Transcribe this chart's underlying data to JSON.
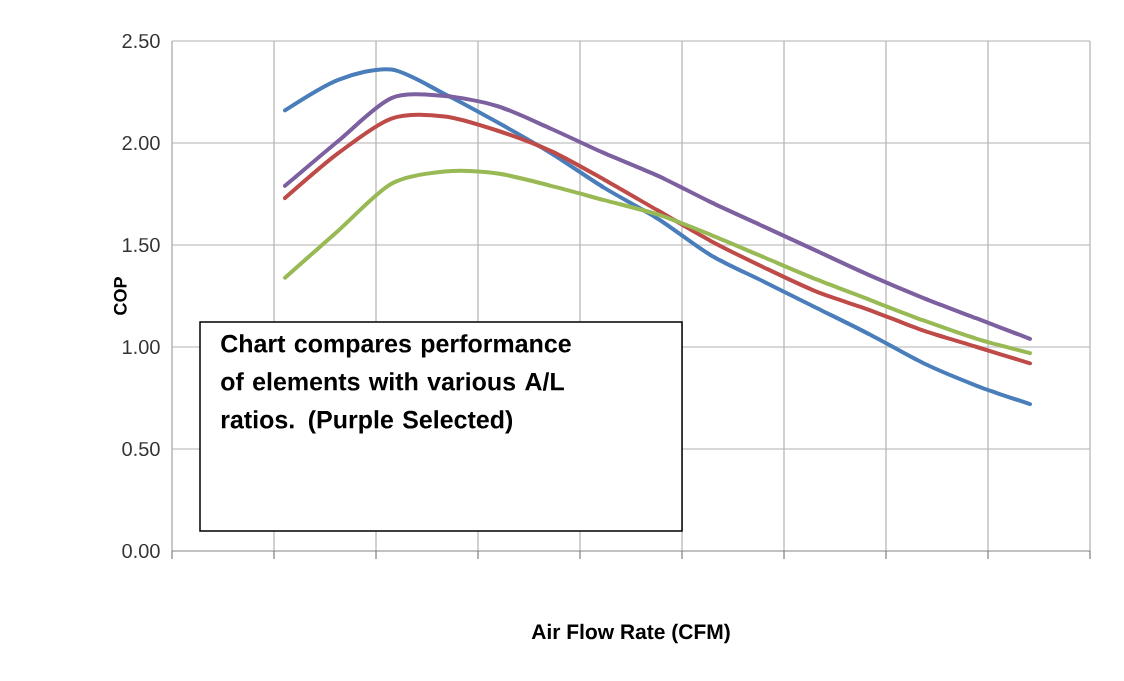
{
  "chart_data": {
    "type": "line",
    "ylabel": "COP",
    "xlabel": "Air Flow Rate (CFM)",
    "categories": [
      null,
      null,
      null,
      null,
      null,
      null,
      null,
      null,
      null,
      null,
      null,
      null,
      null,
      null,
      null
    ],
    "ylim": [
      0,
      2.5
    ],
    "yticks": [
      {
        "value": 0,
        "label": "0.00"
      },
      {
        "value": 0.5,
        "label": "0.50"
      },
      {
        "value": 1,
        "label": "1.00"
      },
      {
        "value": 1.5,
        "label": "1.50"
      },
      {
        "value": 2,
        "label": "2.00"
      },
      {
        "value": 2.5,
        "label": "2.50"
      }
    ],
    "tick_labels": "y",
    "grid": true,
    "marker": "none",
    "line_style": "solid",
    "series": [
      {
        "color": "#4a7ebb",
        "values": [
          2.16,
          2.31,
          2.36,
          2.24,
          2.1,
          1.95,
          1.78,
          1.63,
          1.45,
          1.32,
          1.19,
          1.06,
          0.92,
          0.81,
          0.72
        ]
      },
      {
        "color": "#be4b48",
        "values": [
          1.73,
          1.95,
          2.12,
          2.13,
          2.06,
          1.96,
          1.82,
          1.67,
          1.52,
          1.39,
          1.27,
          1.18,
          1.08,
          1.0,
          0.92
        ]
      },
      {
        "color": "#98b954",
        "values": [
          1.34,
          1.57,
          1.8,
          1.86,
          1.85,
          1.79,
          1.72,
          1.65,
          1.55,
          1.44,
          1.33,
          1.23,
          1.13,
          1.04,
          0.97
        ]
      },
      {
        "color": "#7d60a0",
        "values": [
          1.79,
          2.01,
          2.22,
          2.23,
          2.18,
          2.07,
          1.95,
          1.84,
          1.71,
          1.59,
          1.47,
          1.35,
          1.24,
          1.14,
          1.04
        ]
      }
    ],
    "annotations": [
      "Chart compares performance of elements with various A/L ratios. (Purple Selected)"
    ]
  }
}
